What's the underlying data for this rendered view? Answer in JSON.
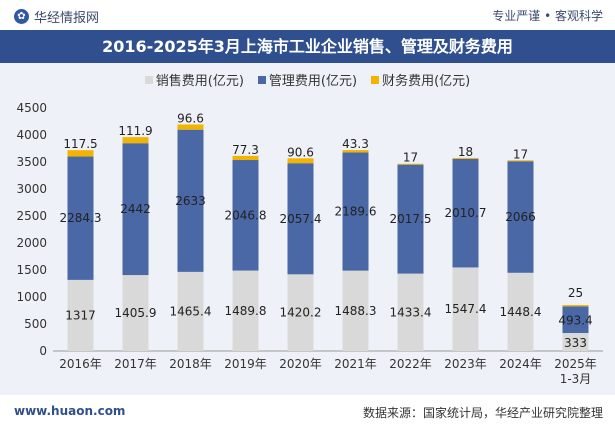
{
  "header": {
    "brand": "华经情报网",
    "slogan": "专业严谨 • 客观科学"
  },
  "footer": {
    "site": "www.huaon.com",
    "source": "数据来源：国家统计局，华经产业研究院整理"
  },
  "colors": {
    "sales": "#d9d9d9",
    "management": "#4a67a6",
    "finance": "#f3b400",
    "title_bg": "#2f4f8f"
  },
  "chart_data": {
    "type": "bar",
    "stacked": true,
    "title": "2016-2025年3月上海市工业企业销售、管理及财务费用",
    "categories": [
      "2016年",
      "2017年",
      "2018年",
      "2019年",
      "2020年",
      "2021年",
      "2022年",
      "2023年",
      "2024年",
      "2025年\n1-3月"
    ],
    "series": [
      {
        "name": "销售费用(亿元)",
        "values": [
          1317,
          1405.9,
          1465.4,
          1489.8,
          1420.2,
          1488.3,
          1433.4,
          1547.4,
          1448.4,
          333
        ]
      },
      {
        "name": "管理费用(亿元)",
        "values": [
          2284.3,
          2442,
          2633,
          2046.8,
          2057.4,
          2189.6,
          2017.5,
          2010.7,
          2066,
          493.4
        ]
      },
      {
        "name": "财务费用(亿元)",
        "values": [
          117.5,
          111.9,
          96.6,
          77.3,
          90.6,
          43.3,
          17,
          18,
          17,
          25
        ]
      }
    ],
    "ylim": [
      0,
      4500
    ],
    "yticks": [
      0,
      500,
      1000,
      1500,
      2000,
      2500,
      3000,
      3500,
      4000,
      4500
    ],
    "legend_position": "top-center",
    "grid": false
  }
}
